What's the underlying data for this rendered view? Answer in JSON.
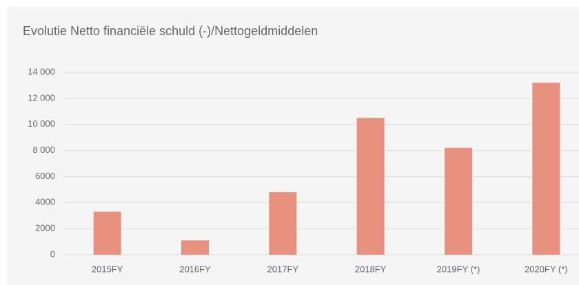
{
  "chart_data": {
    "type": "bar",
    "title": "Evolutie Netto financiële schuld (-)/Nettogeldmiddelen",
    "categories": [
      "2015FY",
      "2016FY",
      "2017FY",
      "2018FY",
      "2019FY (*)",
      "2020FY (*)"
    ],
    "values": [
      3300,
      1100,
      4800,
      10500,
      8200,
      13200
    ],
    "color": "#e8917f",
    "ylim": [
      0,
      14000
    ],
    "yticks": [
      0,
      2000,
      4000,
      6000,
      {
        "value": 8000,
        "label": "8 000"
      },
      {
        "value": 10000,
        "label": "10 000"
      },
      {
        "value": 12000,
        "label": "12 000"
      },
      {
        "value": 14000,
        "label": "14 000"
      }
    ],
    "grid": true
  }
}
